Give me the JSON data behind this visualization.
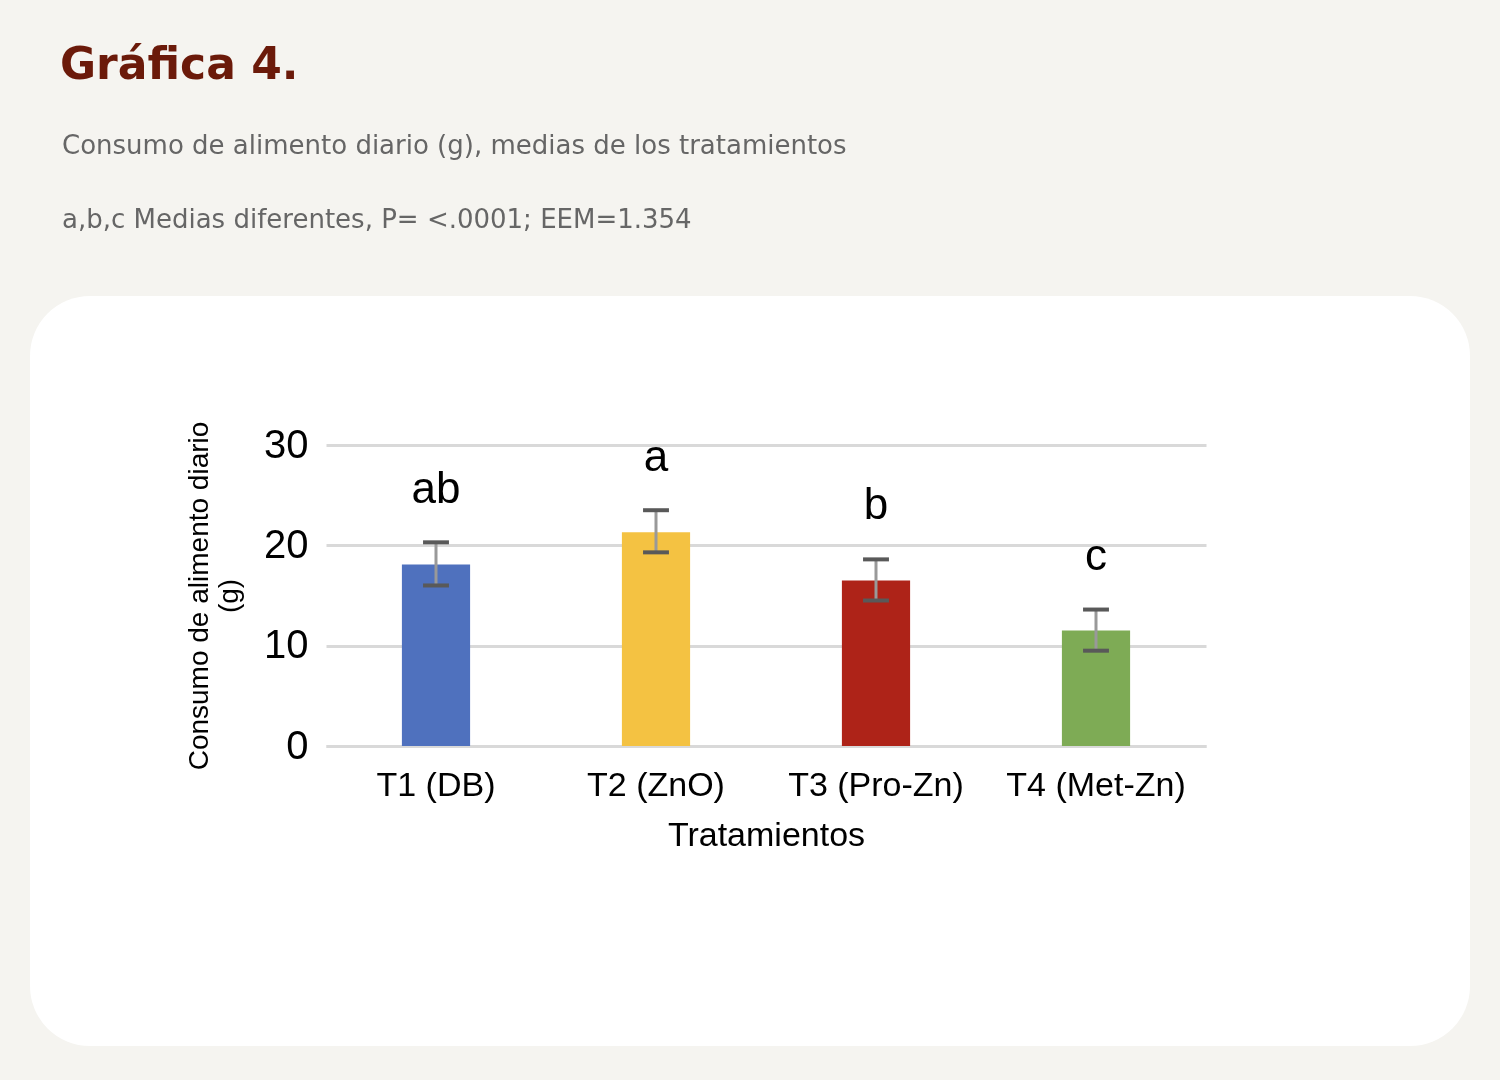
{
  "chart_data": {
    "type": "bar",
    "title": "Gráfica 4.",
    "subtitle": "Consumo de alimento diario (g), medias de los tratamientos",
    "xlabel": "Tratamientos",
    "ylabel": "Consumo de alimento diario (g)",
    "categories": [
      "T1 (DB)",
      "T2 (ZnO)",
      "T3 (Pro-Zn)",
      "T4 (Met-Zn)"
    ],
    "values": [
      18.1,
      21.3,
      16.5,
      11.5
    ],
    "colors": [
      "#4f71be",
      "#f4c242",
      "#ae2318",
      "#7eab55"
    ],
    "errors": [
      [
        16.0,
        20.3
      ],
      [
        19.3,
        23.5
      ],
      [
        14.5,
        18.6
      ],
      [
        9.5,
        13.6
      ]
    ],
    "ylim": [
      0,
      30
    ],
    "yticks": [
      0,
      10,
      20,
      30
    ],
    "grid": "y",
    "annotations": [
      "a,b,c Medias diferentes, P= <.0001; EEM=1.354",
      {
        "text": "ab",
        "x": "T1 (DB)",
        "y": 18.1
      },
      {
        "text": "a",
        "x": "T2 (ZnO)",
        "y": 21.3
      },
      {
        "text": "b",
        "x": "T3 (Pro-Zn)",
        "y": 16.5
      },
      {
        "text": "c",
        "x": "T4 (Met-Zn)",
        "y": 11.5
      }
    ]
  }
}
